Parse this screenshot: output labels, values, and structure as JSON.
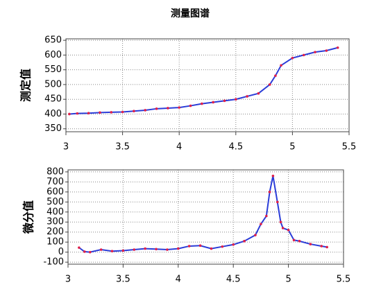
{
  "title": "测量图谱",
  "chart_data": [
    {
      "type": "line",
      "ylabel": "测定值",
      "x": [
        3.03,
        3.1,
        3.2,
        3.3,
        3.4,
        3.5,
        3.6,
        3.7,
        3.8,
        3.9,
        4.0,
        4.1,
        4.2,
        4.3,
        4.4,
        4.5,
        4.6,
        4.7,
        4.8,
        4.85,
        4.9,
        5.0,
        5.1,
        5.2,
        5.3,
        5.4
      ],
      "series": [
        {
          "color": "#2a3cd8",
          "marker_color": "#e0204a",
          "values": [
            400,
            402,
            403,
            405,
            406,
            407,
            410,
            413,
            418,
            420,
            422,
            428,
            435,
            440,
            445,
            450,
            460,
            470,
            500,
            530,
            565,
            590,
            600,
            610,
            615,
            625
          ]
        }
      ],
      "xlim": [
        3,
        5.5
      ],
      "xticks": [
        3,
        3.5,
        4,
        4.5,
        5,
        5.5
      ],
      "ylim": [
        340,
        655
      ],
      "yticks": [
        350,
        400,
        450,
        500,
        550,
        600,
        650
      ],
      "grid": true
    },
    {
      "type": "line",
      "ylabel": "微分值",
      "x": [
        3.1,
        3.15,
        3.2,
        3.3,
        3.4,
        3.5,
        3.6,
        3.7,
        3.8,
        3.9,
        4.0,
        4.1,
        4.2,
        4.3,
        4.4,
        4.5,
        4.6,
        4.7,
        4.75,
        4.8,
        4.83,
        4.86,
        4.9,
        4.93,
        4.95,
        5.0,
        5.05,
        5.1,
        5.2,
        5.3,
        5.35
      ],
      "series": [
        {
          "color": "#2a3cd8",
          "marker_color": "#e0204a",
          "values": [
            45,
            5,
            0,
            25,
            10,
            15,
            25,
            35,
            30,
            25,
            35,
            60,
            65,
            35,
            55,
            75,
            110,
            170,
            280,
            360,
            600,
            760,
            500,
            300,
            240,
            220,
            120,
            110,
            80,
            60,
            50
          ]
        }
      ],
      "xlim": [
        3,
        5.5
      ],
      "xticks": [
        3,
        3.5,
        4,
        4.5,
        5,
        5.5
      ],
      "ylim": [
        -120,
        820
      ],
      "yticks": [
        -100,
        0,
        100,
        200,
        300,
        400,
        500,
        600,
        700,
        800
      ],
      "grid": true
    }
  ]
}
